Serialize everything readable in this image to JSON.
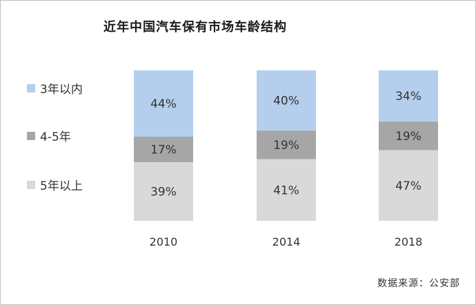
{
  "chart_data": {
    "type": "bar",
    "stacked": true,
    "title": "近年中国汽车保有市场车龄结构",
    "categories": [
      "2010",
      "2014",
      "2018"
    ],
    "series": [
      {
        "name": "5年以上",
        "color": "#d9d9d9",
        "values": [
          39,
          41,
          47
        ],
        "labels": [
          "39%",
          "41%",
          "47%"
        ]
      },
      {
        "name": "4-5年",
        "color": "#a6a6a6",
        "values": [
          17,
          19,
          19
        ],
        "labels": [
          "17%",
          "19%",
          "19%"
        ]
      },
      {
        "name": "3年以内",
        "color": "#b4cfed",
        "values": [
          44,
          40,
          34
        ],
        "labels": [
          "44%",
          "40%",
          "34%"
        ]
      }
    ],
    "ylim": [
      0,
      100
    ],
    "grid": false,
    "legend_position": "left"
  },
  "legend": [
    {
      "label": "3年以内",
      "color": "#b4cfed"
    },
    {
      "label": "4-5年",
      "color": "#a6a6a6"
    },
    {
      "label": "5年以上",
      "color": "#d9d9d9"
    }
  ],
  "source": "数据来源：公安部"
}
